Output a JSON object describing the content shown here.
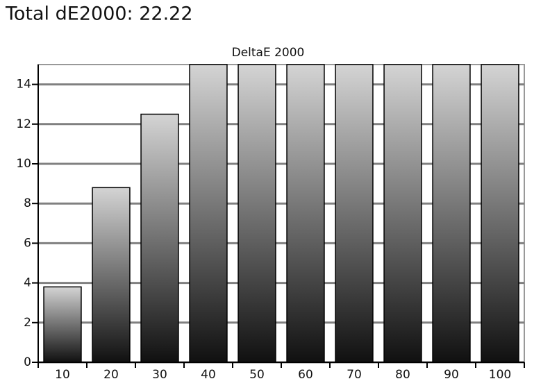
{
  "header": {
    "title": "Total dE2000: 22.22"
  },
  "chart_data": {
    "type": "bar",
    "title": "DeltaE 2000",
    "categories": [
      "10",
      "20",
      "30",
      "40",
      "50",
      "60",
      "70",
      "80",
      "90",
      "100"
    ],
    "values": [
      3.8,
      8.8,
      12.5,
      15,
      15,
      15,
      15,
      15,
      15,
      15
    ],
    "gradient": [
      "#d4d4d4",
      "#101010"
    ],
    "ylim": [
      0,
      15
    ],
    "yticks": [
      0,
      2,
      4,
      6,
      8,
      10,
      12,
      14
    ],
    "grid": true
  }
}
